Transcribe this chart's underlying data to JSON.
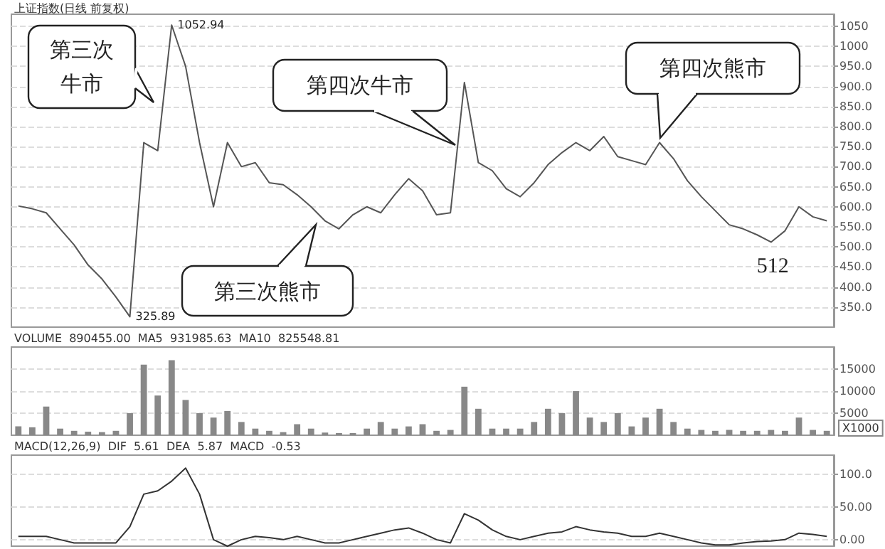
{
  "chart_data": [
    {
      "type": "line",
      "title": "上证指数(日线 前复权)",
      "categories": [
        null,
        null,
        null,
        null,
        null,
        null,
        null,
        null,
        null,
        null,
        null,
        null,
        null,
        null,
        null,
        null,
        null,
        null,
        null,
        null,
        null,
        null,
        null,
        null,
        null,
        null,
        null,
        null,
        null,
        null,
        null,
        null,
        null,
        null,
        null,
        null,
        null,
        null,
        null,
        null,
        null,
        null,
        null,
        null,
        null,
        null,
        null,
        null,
        null,
        null,
        null,
        null,
        null,
        null,
        null,
        null,
        null,
        null,
        null
      ],
      "values": [
        602,
        595,
        585,
        545,
        505,
        455,
        420,
        375,
        326,
        760,
        740,
        1053,
        950,
        760,
        600,
        760,
        700,
        710,
        660,
        655,
        630,
        600,
        565,
        545,
        580,
        600,
        585,
        630,
        670,
        640,
        580,
        585,
        910,
        710,
        690,
        645,
        625,
        660,
        705,
        735,
        760,
        740,
        775,
        725,
        715,
        705,
        760,
        720,
        665,
        625,
        590,
        555,
        545,
        530,
        512,
        540,
        600,
        575,
        565
      ],
      "color": "#555555",
      "ylim": [
        300,
        1080
      ],
      "yticks": [
        {
          "value": 350,
          "label": "350.0"
        },
        {
          "value": 400,
          "label": "400.0"
        },
        {
          "value": 450,
          "label": "450.0"
        },
        {
          "value": 500,
          "label": "500.0"
        },
        {
          "value": 550,
          "label": "550.0"
        },
        {
          "value": 600,
          "label": "600.0"
        },
        {
          "value": 650,
          "label": "650.0"
        },
        {
          "value": 700,
          "label": "700.0"
        },
        {
          "value": 750,
          "label": "750.0"
        },
        {
          "value": 800,
          "label": "800.0"
        },
        {
          "value": 850,
          "label": "850.0"
        },
        {
          "value": 900,
          "label": "900.0"
        },
        {
          "value": 950,
          "label": "950.0"
        },
        {
          "value": 1000,
          "label": "1000"
        },
        {
          "value": 1050,
          "label": "1050"
        }
      ],
      "grid": "y",
      "tick_labels": "y",
      "marker": "none",
      "line_style": "solid",
      "annotations": [
        "第三次牛市",
        "第三次熊市",
        "第四次牛市",
        "第四次熊市",
        "1052.94",
        "325.89",
        "512"
      ]
    },
    {
      "type": "bar",
      "categories": [
        null,
        null,
        null,
        null,
        null,
        null,
        null,
        null,
        null,
        null,
        null,
        null,
        null,
        null,
        null,
        null,
        null,
        null,
        null,
        null,
        null,
        null,
        null,
        null,
        null,
        null,
        null,
        null,
        null,
        null,
        null,
        null,
        null,
        null,
        null,
        null,
        null,
        null,
        null,
        null,
        null,
        null,
        null,
        null,
        null,
        null,
        null,
        null,
        null,
        null,
        null,
        null,
        null,
        null,
        null,
        null,
        null,
        null,
        null
      ],
      "values": [
        2000,
        1800,
        6500,
        1500,
        1000,
        800,
        700,
        1000,
        5000,
        16000,
        9000,
        17000,
        8000,
        5000,
        4000,
        5500,
        3000,
        1500,
        1000,
        700,
        2500,
        1500,
        600,
        500,
        500,
        1500,
        3000,
        1500,
        2000,
        2500,
        1000,
        1200,
        11000,
        6000,
        1500,
        1500,
        1500,
        3000,
        6000,
        5000,
        10000,
        4000,
        3000,
        5000,
        2000,
        4000,
        6000,
        3000,
        1500,
        1200,
        1000,
        1200,
        1000,
        1000,
        1200,
        1000,
        4000,
        1200,
        1000
      ],
      "color": "#888888",
      "ylim": [
        0,
        20000
      ],
      "yticks": [
        5000,
        10000,
        15000
      ],
      "grid": "y",
      "tick_labels": "y",
      "annotations": [
        "VOLUME  890455.00  MA5  931985.63  MA10  825548.81",
        "X1000"
      ]
    },
    {
      "type": "line",
      "categories": [
        null,
        null,
        null,
        null,
        null,
        null,
        null,
        null,
        null,
        null,
        null,
        null,
        null,
        null,
        null,
        null,
        null,
        null,
        null,
        null,
        null,
        null,
        null,
        null,
        null,
        null,
        null,
        null,
        null,
        null,
        null,
        null,
        null,
        null,
        null,
        null,
        null,
        null,
        null,
        null,
        null,
        null,
        null,
        null,
        null,
        null,
        null,
        null,
        null,
        null,
        null,
        null,
        null,
        null,
        null,
        null,
        null,
        null,
        null
      ],
      "values": [
        5,
        5,
        5,
        0,
        -5,
        -5,
        -5,
        -5,
        20,
        70,
        75,
        90,
        110,
        70,
        0,
        -10,
        0,
        5,
        3,
        0,
        5,
        0,
        -5,
        -5,
        0,
        5,
        10,
        15,
        18,
        10,
        0,
        -5,
        40,
        30,
        15,
        5,
        0,
        5,
        10,
        12,
        20,
        15,
        12,
        10,
        5,
        5,
        10,
        5,
        0,
        -5,
        -8,
        -8,
        -5,
        -3,
        -2,
        0,
        10,
        8,
        5
      ],
      "color": "#333333",
      "ylim": [
        -10,
        130
      ],
      "yticks": [
        {
          "value": 0,
          "label": "0.00"
        },
        {
          "value": 50,
          "label": "50.00"
        },
        {
          "value": 100,
          "label": "100.0"
        }
      ],
      "grid": "y",
      "tick_labels": "y",
      "marker": "none",
      "line_style": "solid",
      "annotations": [
        "MACD(12,26,9)  DIF  5.61  DEA  5.87  MACD  -0.53"
      ]
    }
  ]
}
